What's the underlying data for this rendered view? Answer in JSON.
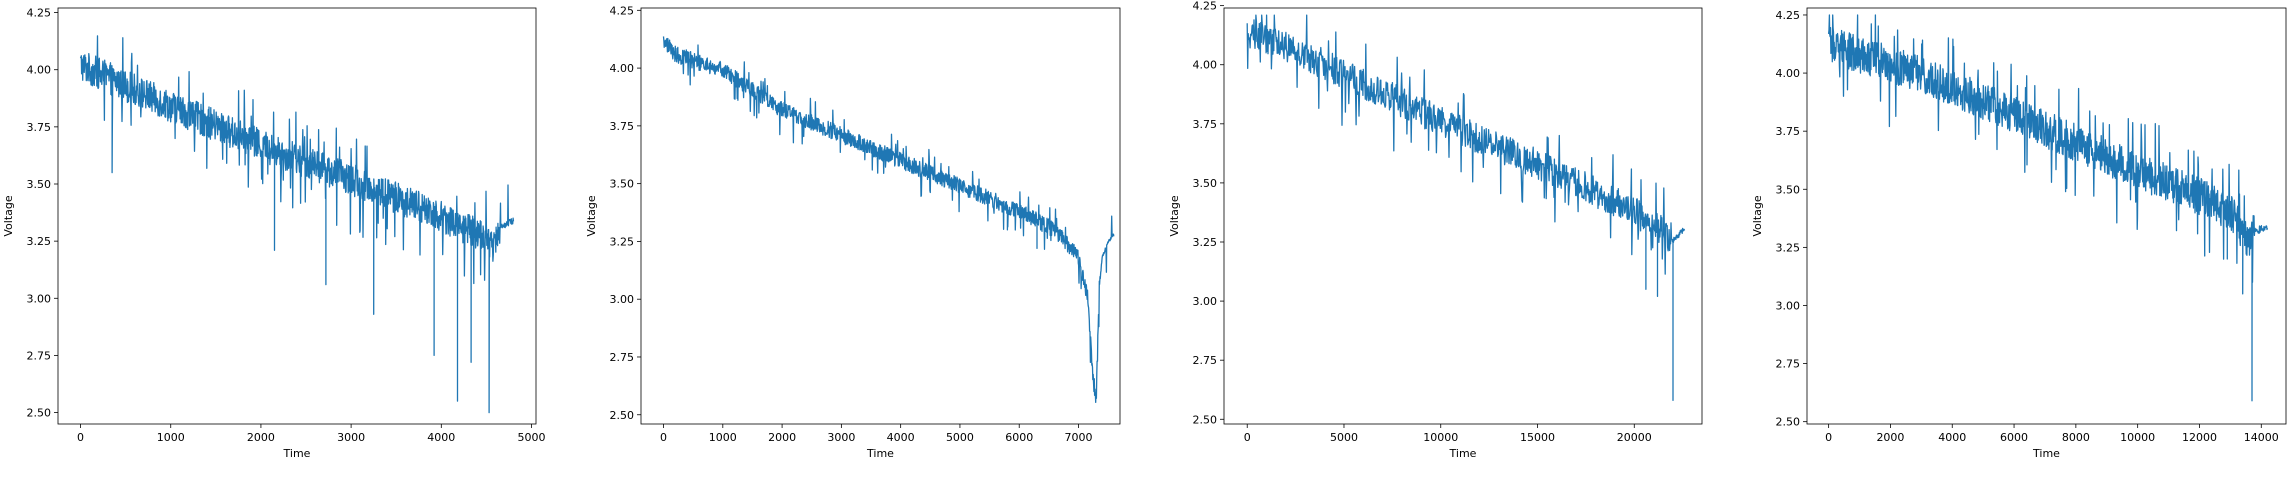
{
  "figure": {
    "line_color": "#1f77b4"
  },
  "chart_data": [
    {
      "type": "line",
      "xlabel": "Time",
      "ylabel": "Voltage",
      "xlim": [
        -250,
        5050
      ],
      "ylim": [
        2.45,
        4.27
      ],
      "xticks": [
        0,
        1000,
        2000,
        3000,
        4000,
        5000
      ],
      "yticks": [
        2.5,
        2.75,
        3.0,
        3.25,
        3.5,
        3.75,
        4.0,
        4.25
      ],
      "ytick_labels": [
        "2.50",
        "2.75",
        "3.00",
        "3.25",
        "3.50",
        "3.75",
        "4.00",
        "4.25"
      ],
      "grid": false,
      "trend": {
        "x": [
          0,
          1000,
          2000,
          3000,
          4000,
          4300,
          4500,
          4560,
          4650,
          4800
        ],
        "y": [
          4.02,
          3.84,
          3.67,
          3.52,
          3.36,
          3.3,
          3.27,
          3.22,
          3.31,
          3.34
        ]
      },
      "noise_amplitude": 0.07,
      "noise_step": 4,
      "spikes": [
        {
          "x": 3920,
          "y": 2.75
        },
        {
          "x": 4180,
          "y": 2.55
        },
        {
          "x": 4330,
          "y": 2.72
        },
        {
          "x": 4530,
          "y": 2.5
        },
        {
          "x": 3250,
          "y": 2.93
        },
        {
          "x": 2720,
          "y": 3.06
        },
        {
          "x": 2150,
          "y": 3.21
        },
        {
          "x": 350,
          "y": 3.55
        }
      ]
    },
    {
      "type": "line",
      "xlabel": "Time",
      "ylabel": "Voltage",
      "xlim": [
        -380,
        7700
      ],
      "ylim": [
        2.46,
        4.26
      ],
      "xticks": [
        0,
        1000,
        2000,
        3000,
        4000,
        5000,
        6000,
        7000
      ],
      "yticks": [
        2.5,
        2.75,
        3.0,
        3.25,
        3.5,
        3.75,
        4.0,
        4.25
      ],
      "ytick_labels": [
        "2.50",
        "2.75",
        "3.00",
        "3.25",
        "3.50",
        "3.75",
        "4.00",
        "4.25"
      ],
      "grid": false,
      "trend": {
        "x": [
          0,
          200,
          1000,
          2000,
          3000,
          4000,
          5000,
          6000,
          6600,
          7000,
          7150,
          7250,
          7300,
          7350,
          7400,
          7500,
          7600
        ],
        "y": [
          4.12,
          4.06,
          3.99,
          3.82,
          3.71,
          3.6,
          3.49,
          3.38,
          3.3,
          3.18,
          3.02,
          2.65,
          2.57,
          3.05,
          3.18,
          3.25,
          3.28
        ]
      },
      "noise_amplitude": 0.035,
      "noise_step": 6,
      "spikes": [
        {
          "x": 5800,
          "y": 3.3
        },
        {
          "x": 6300,
          "y": 3.22
        }
      ]
    },
    {
      "type": "line",
      "xlabel": "Time",
      "ylabel": "Voltage",
      "xlim": [
        -1200,
        23500
      ],
      "ylim": [
        2.48,
        4.24
      ],
      "xticks": [
        0,
        5000,
        10000,
        15000,
        20000
      ],
      "yticks": [
        2.5,
        2.75,
        3.0,
        3.25,
        3.5,
        3.75,
        4.0,
        4.25
      ],
      "ytick_labels": [
        "2.50",
        "2.75",
        "3.00",
        "3.25",
        "3.50",
        "3.75",
        "4.00",
        "4.25"
      ],
      "grid": false,
      "trend": {
        "x": [
          0,
          2000,
          5000,
          10000,
          15000,
          19000,
          21000,
          22000,
          22300,
          22600
        ],
        "y": [
          4.14,
          4.08,
          3.96,
          3.76,
          3.58,
          3.42,
          3.33,
          3.26,
          3.28,
          3.31
        ]
      },
      "noise_amplitude": 0.065,
      "noise_step": 25,
      "spikes": [
        {
          "x": 22000,
          "y": 2.58
        },
        {
          "x": 20600,
          "y": 3.05
        },
        {
          "x": 21200,
          "y": 3.02
        }
      ]
    },
    {
      "type": "line",
      "xlabel": "Time",
      "ylabel": "Voltage",
      "xlim": [
        -700,
        14800
      ],
      "ylim": [
        2.49,
        4.28
      ],
      "xticks": [
        0,
        2000,
        4000,
        6000,
        8000,
        10000,
        12000,
        14000
      ],
      "yticks": [
        2.5,
        2.75,
        3.0,
        3.25,
        3.5,
        3.75,
        4.0,
        4.25
      ],
      "ytick_labels": [
        "2.50",
        "2.75",
        "3.00",
        "3.25",
        "3.50",
        "3.75",
        "4.00",
        "4.25"
      ],
      "grid": false,
      "trend": {
        "x": [
          0,
          2000,
          4000,
          6000,
          8000,
          10000,
          12000,
          13000,
          13600,
          13800,
          14200
        ],
        "y": [
          4.12,
          4.04,
          3.94,
          3.82,
          3.7,
          3.58,
          3.47,
          3.4,
          3.28,
          3.32,
          3.34
        ]
      },
      "noise_amplitude": 0.08,
      "noise_step": 12,
      "spikes": [
        {
          "x": 13700,
          "y": 2.59
        },
        {
          "x": 13400,
          "y": 3.05
        },
        {
          "x": 12900,
          "y": 3.2
        }
      ]
    }
  ]
}
